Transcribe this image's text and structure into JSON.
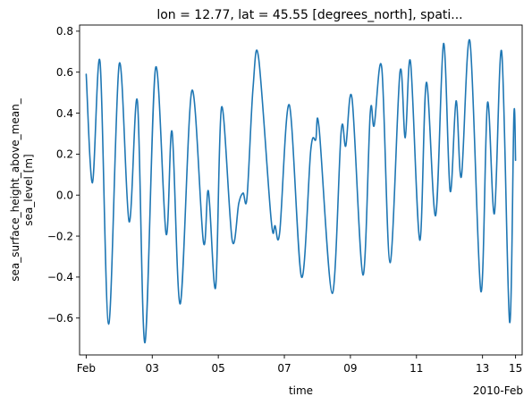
{
  "chart_data": {
    "type": "line",
    "title": "lon = 12.77, lat = 45.55 [degrees_north], spati...",
    "xlabel": "time",
    "ylabel_lines": [
      "sea_surface_height_above_mean_",
      "sea_level [m]"
    ],
    "x_offset_label": "2010-Feb",
    "x_range_days": [
      0,
      13
    ],
    "xlim_days": [
      -0.2,
      13.2
    ],
    "ylim": [
      -0.78,
      0.83
    ],
    "x_ticks": [
      {
        "label": "Feb",
        "day": 0
      },
      {
        "label": "03",
        "day": 2
      },
      {
        "label": "05",
        "day": 4
      },
      {
        "label": "07",
        "day": 6
      },
      {
        "label": "09",
        "day": 8
      },
      {
        "label": "11",
        "day": 10
      },
      {
        "label": "13",
        "day": 12
      },
      {
        "label": "15",
        "day": 14
      }
    ],
    "y_ticks": [
      {
        "label": "−0.6",
        "value": -0.6
      },
      {
        "label": "−0.4",
        "value": -0.4
      },
      {
        "label": "−0.2",
        "value": -0.2
      },
      {
        "label": "0.0",
        "value": 0.0
      },
      {
        "label": "0.2",
        "value": 0.2
      },
      {
        "label": "0.4",
        "value": 0.4
      },
      {
        "label": "0.6",
        "value": 0.6
      },
      {
        "label": "0.8",
        "value": 0.8
      }
    ],
    "grid": false,
    "series": [
      {
        "color": "#1f77b4",
        "points_day_value": [
          [
            0.0,
            0.59
          ],
          [
            0.19,
            0.06
          ],
          [
            0.42,
            0.65
          ],
          [
            0.68,
            -0.63
          ],
          [
            1.0,
            0.64
          ],
          [
            1.3,
            -0.13
          ],
          [
            1.55,
            0.46
          ],
          [
            1.78,
            -0.72
          ],
          [
            2.1,
            0.62
          ],
          [
            2.42,
            -0.19
          ],
          [
            2.6,
            0.31
          ],
          [
            2.85,
            -0.53
          ],
          [
            3.2,
            0.51
          ],
          [
            3.55,
            -0.23
          ],
          [
            3.7,
            0.02
          ],
          [
            3.92,
            -0.45
          ],
          [
            4.1,
            0.43
          ],
          [
            4.42,
            -0.22
          ],
          [
            4.62,
            -0.04
          ],
          [
            4.75,
            0.01
          ],
          [
            4.87,
            -0.01
          ],
          [
            5.05,
            0.52
          ],
          [
            5.22,
            0.67
          ],
          [
            5.6,
            -0.12
          ],
          [
            5.72,
            -0.15
          ],
          [
            5.86,
            -0.18
          ],
          [
            6.15,
            0.44
          ],
          [
            6.52,
            -0.4
          ],
          [
            6.8,
            0.22
          ],
          [
            6.95,
            0.27
          ],
          [
            7.05,
            0.33
          ],
          [
            7.45,
            -0.48
          ],
          [
            7.72,
            0.31
          ],
          [
            7.86,
            0.24
          ],
          [
            8.05,
            0.47
          ],
          [
            8.38,
            -0.39
          ],
          [
            8.6,
            0.4
          ],
          [
            8.72,
            0.34
          ],
          [
            8.95,
            0.62
          ],
          [
            9.2,
            -0.33
          ],
          [
            9.5,
            0.6
          ],
          [
            9.66,
            0.28
          ],
          [
            9.82,
            0.65
          ],
          [
            10.1,
            -0.22
          ],
          [
            10.3,
            0.55
          ],
          [
            10.58,
            -0.1
          ],
          [
            10.82,
            0.74
          ],
          [
            11.02,
            0.02
          ],
          [
            11.2,
            0.46
          ],
          [
            11.36,
            0.09
          ],
          [
            11.62,
            0.75
          ],
          [
            11.95,
            -0.47
          ],
          [
            12.15,
            0.45
          ],
          [
            12.36,
            -0.09
          ],
          [
            12.58,
            0.7
          ],
          [
            12.82,
            -0.62
          ],
          [
            12.95,
            0.39
          ],
          [
            13.0,
            0.17
          ]
        ]
      }
    ]
  }
}
